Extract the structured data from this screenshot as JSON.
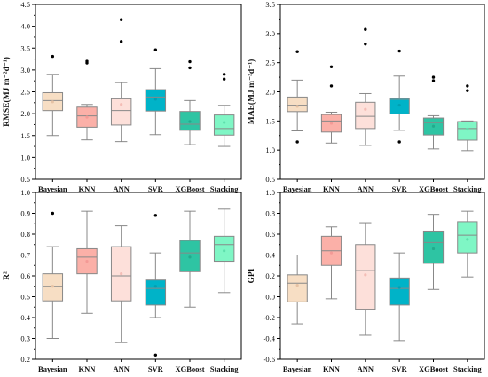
{
  "chart_data": [
    {
      "type": "box",
      "ylabel": "RMSE(MJ m⁻²d⁻¹)",
      "ylim": [
        0.5,
        4.5
      ],
      "yticks": [
        "0.5",
        "1.0",
        "1.5",
        "2.0",
        "2.5",
        "3.0",
        "3.5",
        "4.0",
        "4.5"
      ],
      "categories": [
        "Bayesian",
        "KNN",
        "ANN",
        "SVR",
        "XGBoost",
        "Stacking"
      ],
      "boxes": [
        {
          "min": 1.5,
          "q1": 2.07,
          "median": 2.3,
          "q3": 2.48,
          "max": 2.9,
          "mean": 2.27,
          "outliers": [
            3.31
          ]
        },
        {
          "min": 1.4,
          "q1": 1.69,
          "median": 1.95,
          "q3": 2.15,
          "max": 2.21,
          "mean": 1.92,
          "outliers": [
            3.16,
            3.2
          ]
        },
        {
          "min": 1.36,
          "q1": 1.74,
          "median": 2.07,
          "q3": 2.34,
          "max": 2.71,
          "mean": 2.21,
          "outliers": [
            3.65,
            4.15
          ]
        },
        {
          "min": 1.52,
          "q1": 2.06,
          "median": 2.38,
          "q3": 2.55,
          "max": 3.03,
          "mean": 2.33,
          "outliers": [
            3.46
          ]
        },
        {
          "min": 1.29,
          "q1": 1.62,
          "median": 1.76,
          "q3": 2.05,
          "max": 2.3,
          "mean": 1.82,
          "outliers": [
            3.05,
            3.19
          ]
        },
        {
          "min": 1.25,
          "q1": 1.51,
          "median": 1.66,
          "q3": 1.97,
          "max": 2.19,
          "mean": 1.8,
          "outliers": [
            2.79,
            2.9
          ]
        }
      ]
    },
    {
      "type": "box",
      "ylabel": "MAE(MJ m⁻²d⁻¹)",
      "ylim": [
        0.5,
        3.5
      ],
      "yticks": [
        "0.5",
        "1.0",
        "1.5",
        "2.0",
        "2.5",
        "3.0",
        "3.5"
      ],
      "categories": [
        "Bayesian",
        "KNN",
        "ANN",
        "SVR",
        "XGBoost",
        "Stacking"
      ],
      "boxes": [
        {
          "min": 1.33,
          "q1": 1.66,
          "median": 1.77,
          "q3": 1.91,
          "max": 2.2,
          "mean": 1.75,
          "outliers": [
            2.69,
            1.14
          ]
        },
        {
          "min": 1.12,
          "q1": 1.31,
          "median": 1.5,
          "q3": 1.61,
          "max": 1.65,
          "mean": 1.46,
          "outliers": [
            2.1,
            2.43
          ]
        },
        {
          "min": 1.08,
          "q1": 1.37,
          "median": 1.58,
          "q3": 1.82,
          "max": 1.97,
          "mean": 1.7,
          "outliers": [
            2.82,
            3.07
          ]
        },
        {
          "min": 1.34,
          "q1": 1.62,
          "median": 1.87,
          "q3": 1.89,
          "max": 2.27,
          "mean": 1.77,
          "outliers": [
            1.14,
            2.7
          ]
        },
        {
          "min": 1.02,
          "q1": 1.26,
          "median": 1.47,
          "q3": 1.55,
          "max": 1.59,
          "mean": 1.41,
          "outliers": [
            2.19,
            2.25
          ]
        },
        {
          "min": 0.99,
          "q1": 1.17,
          "median": 1.37,
          "q3": 1.49,
          "max": 1.5,
          "mean": 1.36,
          "outliers": [
            2.02,
            2.1
          ]
        }
      ]
    },
    {
      "type": "box",
      "ylabel": "R²",
      "ylim": [
        0.2,
        1.0
      ],
      "yticks": [
        "0.2",
        "0.3",
        "0.4",
        "0.5",
        "0.6",
        "0.7",
        "0.8",
        "0.9",
        "1.0"
      ],
      "categories": [
        "Bayesian",
        "KNN",
        "ANN",
        "SVR",
        "XGBoost",
        "Stacking"
      ],
      "boxes": [
        {
          "min": 0.3,
          "q1": 0.48,
          "median": 0.55,
          "q3": 0.61,
          "max": 0.74,
          "mean": 0.55,
          "outliers": [
            0.9
          ]
        },
        {
          "min": 0.42,
          "q1": 0.61,
          "median": 0.69,
          "q3": 0.73,
          "max": 0.91,
          "mean": 0.67,
          "outliers": []
        },
        {
          "min": 0.28,
          "q1": 0.48,
          "median": 0.6,
          "q3": 0.74,
          "max": 0.84,
          "mean": 0.61,
          "outliers": []
        },
        {
          "min": 0.4,
          "q1": 0.46,
          "median": 0.54,
          "q3": 0.58,
          "max": 0.71,
          "mean": 0.55,
          "outliers": [
            0.89,
            0.22
          ]
        },
        {
          "min": 0.45,
          "q1": 0.62,
          "median": 0.71,
          "q3": 0.77,
          "max": 0.91,
          "mean": 0.69,
          "outliers": []
        },
        {
          "min": 0.52,
          "q1": 0.67,
          "median": 0.75,
          "q3": 0.79,
          "max": 0.92,
          "mean": 0.72,
          "outliers": []
        }
      ]
    },
    {
      "type": "box",
      "ylabel": "GPI",
      "ylim": [
        -0.6,
        1.0
      ],
      "yticks": [
        "-0.6",
        "-0.4",
        "-0.2",
        "0.0",
        "0.2",
        "0.4",
        "0.6",
        "0.8",
        "1.0"
      ],
      "categories": [
        "Bayesian",
        "KNN",
        "ANN",
        "SVR",
        "XGBoost",
        "Stacking"
      ],
      "boxes": [
        {
          "min": -0.26,
          "q1": -0.05,
          "median": 0.13,
          "q3": 0.21,
          "max": 0.4,
          "mean": 0.11,
          "outliers": []
        },
        {
          "min": -0.02,
          "q1": 0.3,
          "median": 0.44,
          "q3": 0.58,
          "max": 0.67,
          "mean": 0.42,
          "outliers": []
        },
        {
          "min": -0.37,
          "q1": -0.12,
          "median": 0.25,
          "q3": 0.5,
          "max": 0.71,
          "mean": 0.21,
          "outliers": []
        },
        {
          "min": -0.42,
          "q1": -0.08,
          "median": 0.08,
          "q3": 0.18,
          "max": 0.42,
          "mean": 0.09,
          "outliers": []
        },
        {
          "min": 0.07,
          "q1": 0.32,
          "median": 0.52,
          "q3": 0.63,
          "max": 0.79,
          "mean": 0.46,
          "outliers": []
        },
        {
          "min": 0.19,
          "q1": 0.42,
          "median": 0.59,
          "q3": 0.72,
          "max": 0.82,
          "mean": 0.55,
          "outliers": []
        }
      ]
    }
  ],
  "style": {
    "box_fill": [
      "#f7dec4",
      "#fbb0a8",
      "#fde0da",
      "#00b3c8",
      "#2ec4a3",
      "#7ff6c5"
    ],
    "mean_marker": [
      "#e6c2a4",
      "#f49a96",
      "#f4bdb6",
      "#00a0b2",
      "#23aa8c",
      "#5fdfad"
    ],
    "line_color": "#888888",
    "outlier_color": "#000000"
  }
}
